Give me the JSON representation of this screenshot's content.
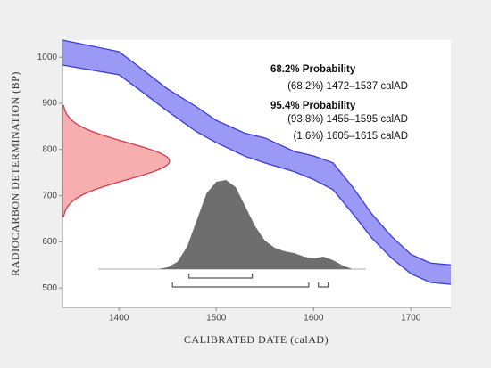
{
  "chart_data": {
    "type": "calibration",
    "x_label": "CALIBRATED DATE (calAD)",
    "y_label": "RADIOCARBON DETERMINATION (BP)",
    "xlim": [
      1342,
      1741
    ],
    "ylim": [
      458,
      1037
    ],
    "xticks": [
      1400,
      1500,
      1600,
      1700
    ],
    "yticks": [
      500,
      600,
      700,
      800,
      900,
      1000
    ],
    "curve": {
      "color": "#8f8ff5",
      "edge_color": "#3b3bd6",
      "x": [
        1342,
        1400,
        1420,
        1450,
        1480,
        1500,
        1530,
        1550,
        1580,
        1600,
        1620,
        1640,
        1660,
        1680,
        1700,
        1720,
        1741
      ],
      "upper": [
        1037,
        1012,
        980,
        931,
        892,
        863,
        835,
        825,
        796,
        786,
        771,
        719,
        660,
        612,
        573,
        554,
        550
      ],
      "lower": [
        983,
        962,
        931,
        883,
        838,
        815,
        785,
        771,
        752,
        735,
        713,
        662,
        608,
        565,
        531,
        512,
        508
      ]
    },
    "measurement": {
      "mean": 775,
      "error": 40,
      "color": "#f5a0a0",
      "edge_color": "#d43a4a"
    },
    "calibrated": {
      "color": "#6e6e6e",
      "x": [
        1440,
        1450,
        1460,
        1470,
        1480,
        1490,
        1500,
        1510,
        1520,
        1530,
        1540,
        1550,
        1560,
        1570,
        1580,
        1590,
        1600,
        1610,
        1620,
        1630,
        1640
      ],
      "values": [
        0,
        2,
        8,
        25,
        55,
        85,
        98,
        100,
        92,
        70,
        48,
        32,
        24,
        20,
        18,
        14,
        12,
        14,
        10,
        4,
        0
      ]
    },
    "ranges": [
      {
        "title": "68.2% Probability",
        "intervals": [
          {
            "label": "(68.2%) 1472–1537 calAD",
            "from": 1472,
            "to": 1537
          }
        ]
      },
      {
        "title": "95.4% Probability",
        "intervals": [
          {
            "label": "(93.8%) 1455–1595 calAD",
            "from": 1455,
            "to": 1595
          },
          {
            "label": "(1.6%) 1605–1615 calAD",
            "from": 1605,
            "to": 1615
          }
        ]
      }
    ]
  }
}
